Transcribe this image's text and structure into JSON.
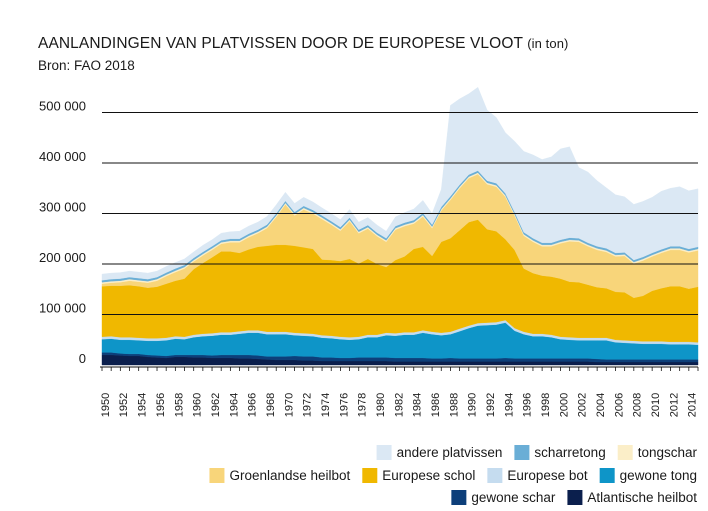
{
  "title": "AANLANDINGEN VAN PLATVISSEN DOOR DE EUROPESE VLOOT",
  "title_unit": "(in ton)",
  "source": "Bron: FAO 2018",
  "chart_data": {
    "type": "area",
    "stacked": true,
    "x": [
      1950,
      1951,
      1952,
      1953,
      1954,
      1955,
      1956,
      1957,
      1958,
      1959,
      1960,
      1961,
      1962,
      1963,
      1964,
      1965,
      1966,
      1967,
      1968,
      1969,
      1970,
      1971,
      1972,
      1973,
      1974,
      1975,
      1976,
      1977,
      1978,
      1979,
      1980,
      1981,
      1982,
      1983,
      1984,
      1985,
      1986,
      1987,
      1988,
      1989,
      1990,
      1991,
      1992,
      1993,
      1994,
      1995,
      1996,
      1997,
      1998,
      1999,
      2000,
      2001,
      2002,
      2003,
      2004,
      2005,
      2006,
      2007,
      2008,
      2009,
      2010,
      2011,
      2012,
      2013,
      2014,
      2015
    ],
    "x_tick_labels": [
      "1950",
      "1952",
      "1954",
      "1956",
      "1958",
      "1960",
      "1962",
      "1964",
      "1966",
      "1968",
      "1970",
      "1972",
      "1974",
      "1976",
      "1978",
      "1980",
      "1982",
      "1984",
      "1986",
      "1988",
      "1990",
      "1992",
      "1994",
      "1996",
      "1998",
      "2000",
      "2002",
      "2004",
      "2006",
      "2008",
      "2010",
      "2012",
      "2014"
    ],
    "y_ticks": [
      0,
      100000,
      200000,
      300000,
      400000,
      500000
    ],
    "y_tick_labels": [
      "0",
      "100 000",
      "200 000",
      "300 000",
      "400 000",
      "500 000"
    ],
    "ylim": [
      0,
      560000
    ],
    "series": [
      {
        "name": "Atlantische heilbot",
        "color": "#0b1f4d",
        "values": [
          20000,
          20000,
          19000,
          18000,
          18000,
          16000,
          15000,
          14000,
          16000,
          16000,
          15000,
          15000,
          14000,
          14000,
          14000,
          13000,
          13000,
          12000,
          11000,
          10000,
          10000,
          10000,
          9000,
          9000,
          8000,
          8000,
          8000,
          8000,
          8000,
          8000,
          8000,
          8000,
          7000,
          7000,
          7000,
          7000,
          7000,
          7000,
          7000,
          7000,
          7000,
          7000,
          7000,
          7000,
          7000,
          7000,
          7000,
          7000,
          7000,
          7000,
          7000,
          7000,
          7000,
          7000,
          6000,
          6000,
          6000,
          6000,
          6000,
          6000,
          6000,
          6000,
          6000,
          6000,
          6000,
          6000
        ]
      },
      {
        "name": "gewone schar",
        "color": "#0d3f7a",
        "values": [
          5000,
          5000,
          4000,
          4000,
          4000,
          4000,
          4000,
          4000,
          4000,
          4000,
          5000,
          5000,
          5000,
          6000,
          6000,
          7000,
          7000,
          7000,
          6000,
          7000,
          7000,
          8000,
          8000,
          8000,
          7000,
          7000,
          6000,
          6000,
          7000,
          7000,
          7000,
          7000,
          7000,
          7000,
          7000,
          7000,
          6000,
          6000,
          7000,
          6000,
          6000,
          6000,
          6000,
          6000,
          7000,
          6000,
          6000,
          6000,
          6000,
          6000,
          6000,
          6000,
          6000,
          6000,
          6000,
          5000,
          5000,
          5000,
          5000,
          5000,
          5000,
          5000,
          5000,
          5000,
          5000,
          5000
        ]
      },
      {
        "name": "gewone tong",
        "color": "#0e95c8",
        "values": [
          26000,
          27000,
          27000,
          28000,
          27000,
          28000,
          29000,
          31000,
          32000,
          31000,
          35000,
          37000,
          39000,
          40000,
          40000,
          42000,
          44000,
          45000,
          44000,
          44000,
          44000,
          41000,
          41000,
          40000,
          39000,
          38000,
          37000,
          36000,
          36000,
          40000,
          40000,
          44000,
          44000,
          46000,
          46000,
          50000,
          48000,
          46000,
          47000,
          54000,
          60000,
          65000,
          66000,
          67000,
          70000,
          55000,
          48000,
          44000,
          44000,
          42000,
          38000,
          37000,
          36000,
          36000,
          37000,
          38000,
          34000,
          33000,
          32000,
          31000,
          31000,
          31000,
          30000,
          30000,
          30000,
          29000
        ]
      },
      {
        "name": "Europese bot",
        "color": "#c5dcef",
        "values": [
          5000,
          5000,
          5000,
          5000,
          5000,
          5000,
          5000,
          5000,
          5000,
          5000,
          5000,
          5000,
          5000,
          5000,
          5000,
          5000,
          5000,
          5000,
          5000,
          5000,
          5000,
          5000,
          5000,
          5000,
          5000,
          5000,
          5000,
          5000,
          5000,
          5000,
          5000,
          5000,
          5000,
          5000,
          5000,
          5000,
          5000,
          5000,
          5000,
          5000,
          5000,
          5000,
          5000,
          5000,
          5000,
          5000,
          5000,
          5000,
          5000,
          5000,
          5000,
          5000,
          5000,
          5000,
          5000,
          5000,
          5000,
          5000,
          5000,
          5000,
          5000,
          5000,
          5000,
          5000,
          5000,
          5000
        ]
      },
      {
        "name": "Europese schol",
        "color": "#f0b800",
        "values": [
          100000,
          100000,
          102000,
          103000,
          102000,
          100000,
          102000,
          107000,
          110000,
          115000,
          130000,
          140000,
          150000,
          160000,
          160000,
          155000,
          160000,
          165000,
          170000,
          172000,
          172000,
          172000,
          170000,
          168000,
          150000,
          150000,
          150000,
          155000,
          145000,
          150000,
          140000,
          130000,
          145000,
          150000,
          165000,
          165000,
          150000,
          180000,
          185000,
          195000,
          205000,
          205000,
          185000,
          180000,
          160000,
          155000,
          125000,
          120000,
          115000,
          115000,
          115000,
          110000,
          110000,
          105000,
          100000,
          98000,
          95000,
          95000,
          85000,
          90000,
          100000,
          105000,
          110000,
          110000,
          105000,
          110000
        ]
      },
      {
        "name": "Groenlandse heilbot",
        "color": "#f8d57a",
        "values": [
          5000,
          6000,
          7000,
          9000,
          9000,
          10000,
          12000,
          15000,
          17000,
          20000,
          15000,
          15000,
          15000,
          15000,
          18000,
          21000,
          24000,
          27000,
          35000,
          55000,
          80000,
          60000,
          75000,
          70000,
          80000,
          70000,
          60000,
          75000,
          60000,
          60000,
          55000,
          50000,
          60000,
          60000,
          50000,
          60000,
          55000,
          62000,
          76000,
          83000,
          87000,
          90000,
          89000,
          88000,
          84000,
          68000,
          65000,
          62000,
          58000,
          60000,
          70000,
          80000,
          80000,
          76000,
          74000,
          72000,
          70000,
          72000,
          68000,
          70000,
          68000,
          70000,
          72000,
          72000,
          72000,
          72000
        ]
      },
      {
        "name": "tongschar",
        "color": "#fbeec8",
        "values": [
          3000,
          3000,
          3000,
          3000,
          3000,
          3000,
          3000,
          3000,
          3000,
          3000,
          3000,
          3000,
          3000,
          3000,
          3000,
          3000,
          3000,
          3000,
          3000,
          3000,
          3000,
          3000,
          3000,
          3000,
          3000,
          3000,
          3000,
          3000,
          3000,
          3000,
          3000,
          3000,
          3000,
          3000,
          3000,
          3000,
          3000,
          3000,
          3000,
          3000,
          3000,
          3000,
          3000,
          3000,
          3000,
          3000,
          3000,
          3000,
          3000,
          3000,
          3000,
          3000,
          3000,
          3000,
          3000,
          3000,
          3000,
          3000,
          3000,
          3000,
          3000,
          3000,
          3000,
          3000,
          3000,
          3000
        ]
      },
      {
        "name": "scharretong",
        "color": "#6aaed6",
        "values": [
          4000,
          4000,
          4000,
          4000,
          4000,
          4000,
          4000,
          4000,
          4000,
          4000,
          4000,
          4000,
          4000,
          4000,
          4000,
          4000,
          4000,
          4000,
          4000,
          4000,
          4000,
          4000,
          4000,
          4000,
          4000,
          4000,
          4000,
          4000,
          4000,
          4000,
          4000,
          4000,
          4000,
          4000,
          4000,
          4000,
          4000,
          4000,
          4000,
          4000,
          4000,
          4000,
          4000,
          4000,
          4000,
          4000,
          4000,
          4000,
          4000,
          4000,
          4000,
          4000,
          4000,
          4000,
          4000,
          4000,
          4000,
          4000,
          4000,
          4000,
          4000,
          4000,
          4000,
          4000,
          4000,
          4000
        ]
      },
      {
        "name": "andere platvissen",
        "color": "#dbe8f4",
        "values": [
          12000,
          12000,
          12000,
          12000,
          12000,
          12000,
          12000,
          12000,
          12000,
          12000,
          12000,
          13000,
          13000,
          14000,
          14000,
          15000,
          15000,
          15000,
          16000,
          17000,
          17000,
          17000,
          17000,
          16000,
          15000,
          15000,
          15000,
          16000,
          15000,
          15000,
          15000,
          14000,
          18000,
          20000,
          22000,
          25000,
          22000,
          35000,
          180000,
          170000,
          160000,
          165000,
          140000,
          130000,
          120000,
          140000,
          160000,
          165000,
          165000,
          170000,
          180000,
          180000,
          140000,
          140000,
          130000,
          120000,
          115000,
          110000,
          110000,
          110000,
          110000,
          115000,
          115000,
          118000,
          115000,
          115000
        ]
      }
    ],
    "legend": [
      [
        "andere platvissen",
        "scharretong",
        "tongschar"
      ],
      [
        "Groenlandse heilbot",
        "Europese schol",
        "Europese bot",
        "gewone tong"
      ],
      [
        "gewone schar",
        "Atlantische heilbot"
      ]
    ],
    "legend_position": "bottom-right",
    "grid": "horizontal"
  }
}
